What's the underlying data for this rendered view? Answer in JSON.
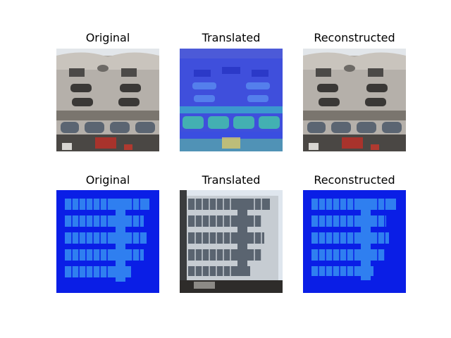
{
  "panels": [
    {
      "title": "Original",
      "image": "building-facade-photo"
    },
    {
      "title": "Translated",
      "image": "blue-segmentation-map"
    },
    {
      "title": "Reconstructed",
      "image": "building-facade-photo"
    },
    {
      "title": "Original",
      "image": "blue-segmentation-map"
    },
    {
      "title": "Translated",
      "image": "grey-building-facade"
    },
    {
      "title": "Reconstructed",
      "image": "blue-segmentation-map"
    }
  ],
  "colors": {
    "segmentation_bg": "#0a1ee6",
    "segmentation_window": "#2f7ff0",
    "facade_stone": "#a8a4a0",
    "facade_sky": "#dfe6ee"
  }
}
